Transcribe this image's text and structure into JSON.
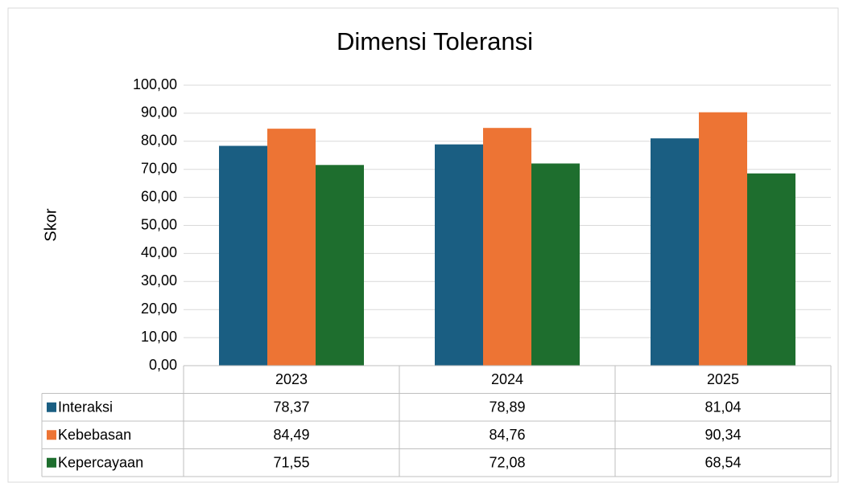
{
  "chart_data": {
    "type": "bar",
    "title": "Dimensi Toleransi",
    "y_label": "Skor",
    "categories": [
      "2023",
      "2024",
      "2025"
    ],
    "series": [
      {
        "name": "Interaksi",
        "color": "#1a5e82",
        "values": [
          78.37,
          78.89,
          81.04
        ],
        "value_labels": [
          "78,37",
          "78,89",
          "81,04"
        ]
      },
      {
        "name": "Kebebasan",
        "color": "#ed7434",
        "values": [
          84.49,
          84.76,
          90.34
        ],
        "value_labels": [
          "84,49",
          "84,76",
          "90,34"
        ]
      },
      {
        "name": "Kepercayaan",
        "color": "#1e6e2e",
        "values": [
          71.55,
          72.08,
          68.54
        ],
        "value_labels": [
          "71,55",
          "72,08",
          "68,54"
        ]
      }
    ],
    "ylim": [
      0,
      100
    ],
    "yticks": [
      {
        "value": 0,
        "label": "0,00"
      },
      {
        "value": 10,
        "label": "10,00"
      },
      {
        "value": 20,
        "label": "20,00"
      },
      {
        "value": 30,
        "label": "30,00"
      },
      {
        "value": 40,
        "label": "40,00"
      },
      {
        "value": 50,
        "label": "50,00"
      },
      {
        "value": 60,
        "label": "60,00"
      },
      {
        "value": 70,
        "label": "70,00"
      },
      {
        "value": 80,
        "label": "80,00"
      },
      {
        "value": 90,
        "label": "90,00"
      },
      {
        "value": 100,
        "label": "100,00"
      }
    ],
    "grid": true,
    "data_table": true
  }
}
